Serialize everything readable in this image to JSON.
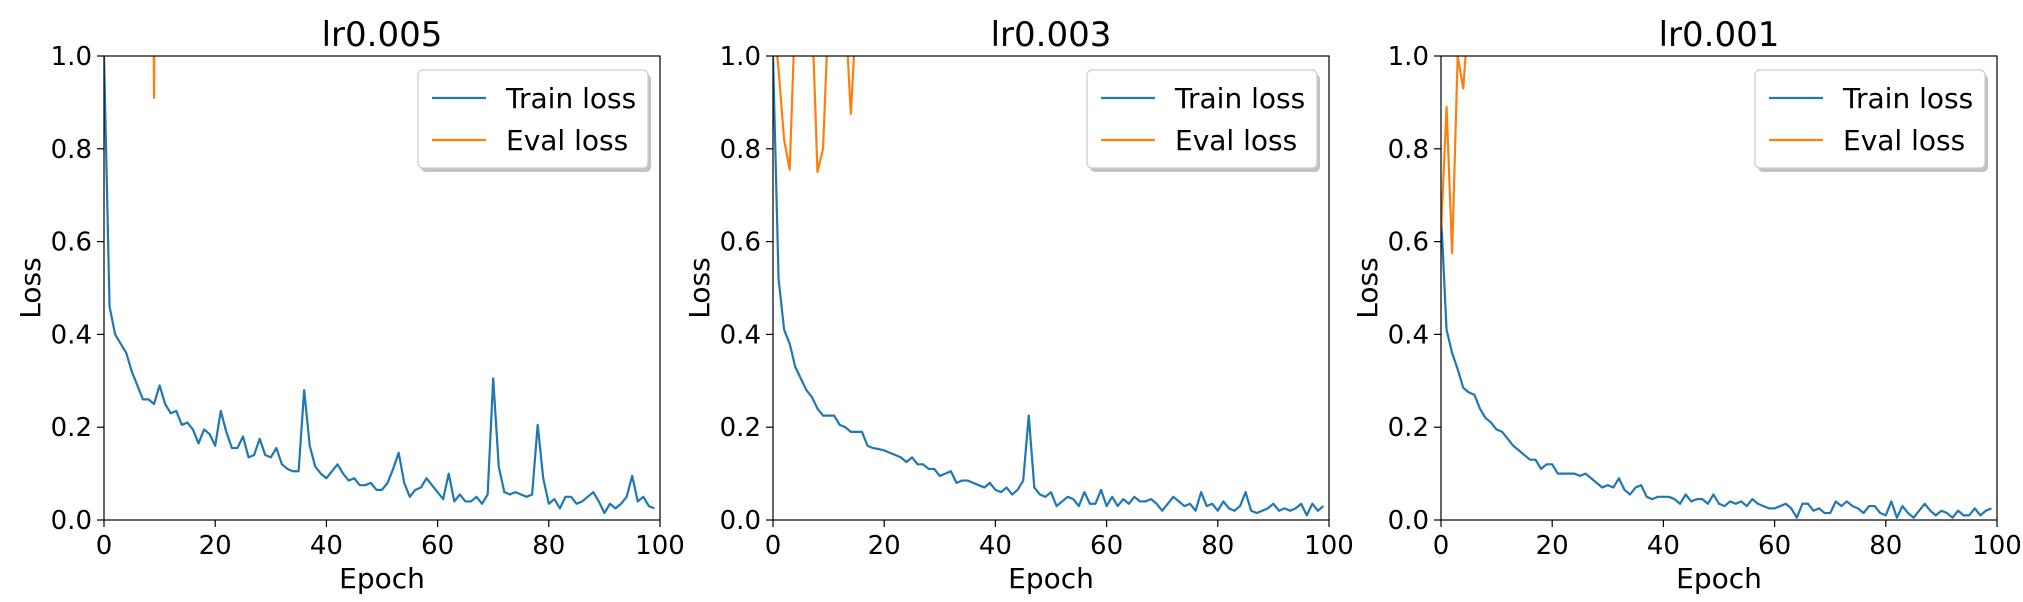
{
  "figure": {
    "background": "#ffffff"
  },
  "chart_data": [
    {
      "type": "line",
      "title": "lr0.005",
      "xlabel": "Epoch",
      "ylabel": "Loss",
      "xlim": [
        0,
        100
      ],
      "ylim": [
        0.0,
        1.0
      ],
      "xticks": [
        "0",
        "20",
        "40",
        "60",
        "80",
        "100"
      ],
      "yticks": [
        "0.0",
        "0.2",
        "0.4",
        "0.6",
        "0.8",
        "1.0"
      ],
      "grid": false,
      "legend": "top-right",
      "series": [
        {
          "name": "Train loss",
          "color": "#1f77b4",
          "x": [
            0,
            1,
            2,
            3,
            4,
            5,
            6,
            7,
            8,
            9,
            10,
            11,
            12,
            13,
            14,
            15,
            16,
            17,
            18,
            19,
            20,
            21,
            22,
            23,
            24,
            25,
            26,
            27,
            28,
            29,
            30,
            31,
            32,
            33,
            34,
            35,
            36,
            37,
            38,
            39,
            40,
            41,
            42,
            43,
            44,
            45,
            46,
            47,
            48,
            49,
            50,
            51,
            52,
            53,
            54,
            55,
            56,
            57,
            58,
            59,
            60,
            61,
            62,
            63,
            64,
            65,
            66,
            67,
            68,
            69,
            70,
            71,
            72,
            73,
            74,
            75,
            76,
            77,
            78,
            79,
            80,
            81,
            82,
            83,
            84,
            85,
            86,
            87,
            88,
            89,
            90,
            91,
            92,
            93,
            94,
            95,
            96,
            97,
            98,
            99
          ],
          "values": [
            1.0,
            0.46,
            0.4,
            0.38,
            0.36,
            0.32,
            0.29,
            0.26,
            0.26,
            0.25,
            0.29,
            0.25,
            0.23,
            0.235,
            0.205,
            0.21,
            0.195,
            0.165,
            0.195,
            0.185,
            0.16,
            0.235,
            0.19,
            0.155,
            0.155,
            0.18,
            0.135,
            0.14,
            0.175,
            0.14,
            0.135,
            0.155,
            0.12,
            0.11,
            0.105,
            0.105,
            0.28,
            0.16,
            0.115,
            0.1,
            0.09,
            0.105,
            0.12,
            0.1,
            0.085,
            0.09,
            0.075,
            0.075,
            0.08,
            0.065,
            0.065,
            0.08,
            0.11,
            0.145,
            0.08,
            0.05,
            0.065,
            0.07,
            0.09,
            0.075,
            0.06,
            0.045,
            0.1,
            0.04,
            0.055,
            0.04,
            0.04,
            0.05,
            0.035,
            0.055,
            0.305,
            0.115,
            0.06,
            0.055,
            0.06,
            0.055,
            0.05,
            0.055,
            0.205,
            0.09,
            0.035,
            0.045,
            0.025,
            0.05,
            0.05,
            0.035,
            0.04,
            0.05,
            0.06,
            0.04,
            0.015,
            0.035,
            0.025,
            0.035,
            0.05,
            0.095,
            0.04,
            0.05,
            0.03,
            0.025
          ]
        },
        {
          "name": "Eval loss",
          "color": "#ff7f0e",
          "x": [
            8.9,
            9.0,
            9.1
          ],
          "values": [
            1.1,
            0.91,
            1.1
          ]
        }
      ]
    },
    {
      "type": "line",
      "title": "lr0.003",
      "xlabel": "Epoch",
      "ylabel": "Loss",
      "xlim": [
        0,
        100
      ],
      "ylim": [
        0.0,
        1.0
      ],
      "xticks": [
        "0",
        "20",
        "40",
        "60",
        "80",
        "100"
      ],
      "yticks": [
        "0.0",
        "0.2",
        "0.4",
        "0.6",
        "0.8",
        "1.0"
      ],
      "grid": false,
      "legend": "top-right",
      "series": [
        {
          "name": "Train loss",
          "color": "#1f77b4",
          "x": [
            0,
            1,
            2,
            3,
            4,
            5,
            6,
            7,
            8,
            9,
            10,
            11,
            12,
            13,
            14,
            15,
            16,
            17,
            18,
            19,
            20,
            21,
            22,
            23,
            24,
            25,
            26,
            27,
            28,
            29,
            30,
            31,
            32,
            33,
            34,
            35,
            36,
            37,
            38,
            39,
            40,
            41,
            42,
            43,
            44,
            45,
            46,
            47,
            48,
            49,
            50,
            51,
            52,
            53,
            54,
            55,
            56,
            57,
            58,
            59,
            60,
            61,
            62,
            63,
            64,
            65,
            66,
            67,
            68,
            69,
            70,
            71,
            72,
            73,
            74,
            75,
            76,
            77,
            78,
            79,
            80,
            81,
            82,
            83,
            84,
            85,
            86,
            87,
            88,
            89,
            90,
            91,
            92,
            93,
            94,
            95,
            96,
            97,
            98,
            99
          ],
          "values": [
            1.0,
            0.52,
            0.41,
            0.38,
            0.33,
            0.305,
            0.28,
            0.265,
            0.24,
            0.225,
            0.225,
            0.225,
            0.205,
            0.2,
            0.19,
            0.19,
            0.19,
            0.16,
            0.155,
            0.153,
            0.15,
            0.145,
            0.14,
            0.135,
            0.125,
            0.135,
            0.12,
            0.12,
            0.11,
            0.11,
            0.095,
            0.1,
            0.105,
            0.08,
            0.085,
            0.085,
            0.08,
            0.075,
            0.07,
            0.08,
            0.065,
            0.06,
            0.07,
            0.055,
            0.065,
            0.085,
            0.225,
            0.07,
            0.055,
            0.05,
            0.06,
            0.03,
            0.04,
            0.05,
            0.045,
            0.03,
            0.06,
            0.035,
            0.035,
            0.065,
            0.03,
            0.05,
            0.03,
            0.045,
            0.035,
            0.05,
            0.04,
            0.04,
            0.045,
            0.035,
            0.02,
            0.035,
            0.05,
            0.04,
            0.03,
            0.035,
            0.02,
            0.06,
            0.03,
            0.035,
            0.02,
            0.04,
            0.025,
            0.02,
            0.03,
            0.06,
            0.02,
            0.015,
            0.02,
            0.025,
            0.035,
            0.02,
            0.025,
            0.02,
            0.025,
            0.035,
            0.01,
            0.035,
            0.02,
            0.03
          ]
        },
        {
          "name": "Eval loss",
          "color": "#ff7f0e",
          "x": [
            0,
            1,
            2,
            3,
            4,
            5,
            6,
            7,
            8,
            9,
            10,
            11,
            12,
            13,
            14,
            15
          ],
          "values": [
            1.1,
            0.97,
            0.82,
            0.755,
            1.1,
            1.1,
            1.1,
            1.1,
            0.75,
            0.8,
            1.1,
            1.1,
            1.1,
            1.1,
            0.875,
            1.1
          ]
        }
      ]
    },
    {
      "type": "line",
      "title": "lr0.001",
      "xlabel": "Epoch",
      "ylabel": "Loss",
      "xlim": [
        0,
        100
      ],
      "ylim": [
        0.0,
        1.0
      ],
      "xticks": [
        "0",
        "20",
        "40",
        "60",
        "80",
        "100"
      ],
      "yticks": [
        "0.0",
        "0.2",
        "0.4",
        "0.6",
        "0.8",
        "1.0"
      ],
      "grid": false,
      "legend": "top-right",
      "series": [
        {
          "name": "Train loss",
          "color": "#1f77b4",
          "x": [
            0,
            1,
            2,
            3,
            4,
            5,
            6,
            7,
            8,
            9,
            10,
            11,
            12,
            13,
            14,
            15,
            16,
            17,
            18,
            19,
            20,
            21,
            22,
            23,
            24,
            25,
            26,
            27,
            28,
            29,
            30,
            31,
            32,
            33,
            34,
            35,
            36,
            37,
            38,
            39,
            40,
            41,
            42,
            43,
            44,
            45,
            46,
            47,
            48,
            49,
            50,
            51,
            52,
            53,
            54,
            55,
            56,
            57,
            58,
            59,
            60,
            61,
            62,
            63,
            64,
            65,
            66,
            67,
            68,
            69,
            70,
            71,
            72,
            73,
            74,
            75,
            76,
            77,
            78,
            79,
            80,
            81,
            82,
            83,
            84,
            85,
            86,
            87,
            88,
            89,
            90,
            91,
            92,
            93,
            94,
            95,
            96,
            97,
            98,
            99
          ],
          "values": [
            0.66,
            0.41,
            0.36,
            0.325,
            0.285,
            0.275,
            0.27,
            0.24,
            0.22,
            0.21,
            0.195,
            0.19,
            0.175,
            0.16,
            0.15,
            0.14,
            0.13,
            0.13,
            0.11,
            0.12,
            0.12,
            0.1,
            0.1,
            0.1,
            0.1,
            0.095,
            0.1,
            0.09,
            0.08,
            0.07,
            0.075,
            0.07,
            0.09,
            0.065,
            0.055,
            0.07,
            0.075,
            0.05,
            0.045,
            0.05,
            0.05,
            0.05,
            0.045,
            0.035,
            0.055,
            0.04,
            0.045,
            0.045,
            0.035,
            0.055,
            0.035,
            0.03,
            0.04,
            0.035,
            0.04,
            0.03,
            0.045,
            0.035,
            0.03,
            0.025,
            0.025,
            0.03,
            0.035,
            0.025,
            0.005,
            0.035,
            0.035,
            0.02,
            0.025,
            0.015,
            0.015,
            0.04,
            0.03,
            0.04,
            0.03,
            0.025,
            0.015,
            0.03,
            0.03,
            0.015,
            0.01,
            0.04,
            0.005,
            0.03,
            0.015,
            0.005,
            0.02,
            0.035,
            0.02,
            0.01,
            0.02,
            0.015,
            0.005,
            0.02,
            0.01,
            0.01,
            0.025,
            0.01,
            0.02,
            0.025
          ]
        },
        {
          "name": "Eval loss",
          "color": "#ff7f0e",
          "x": [
            0,
            1,
            2,
            3,
            4,
            5
          ],
          "values": [
            0.62,
            0.89,
            0.575,
            1.0,
            0.93,
            1.1
          ]
        }
      ]
    }
  ]
}
